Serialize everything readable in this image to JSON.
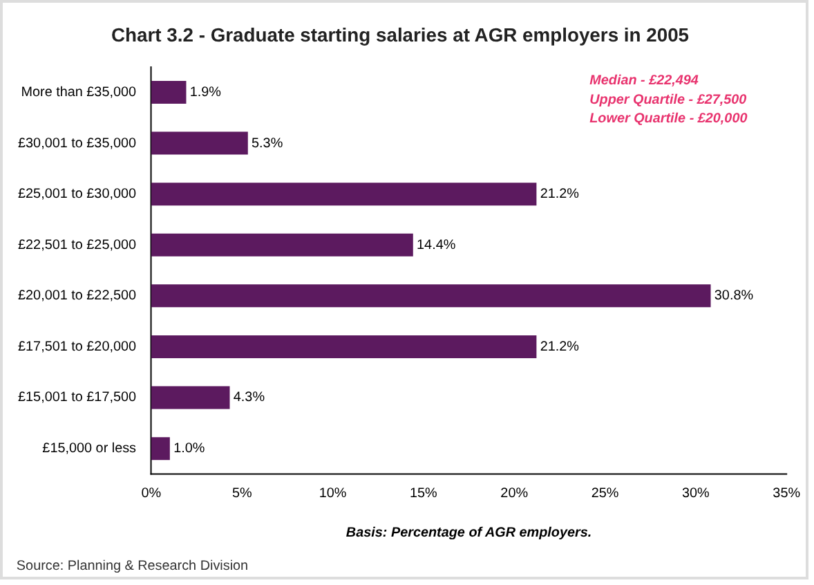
{
  "chart_data": {
    "type": "bar",
    "orientation": "horizontal",
    "title": "Chart 3.2 - Graduate starting salaries at AGR employers in 2005",
    "xlabel": "Basis: Percentage of AGR employers.",
    "categories": [
      "More than £35,000",
      "£30,001 to £35,000",
      "£25,001 to £30,000",
      "£22,501 to £25,000",
      "£20,001 to £22,500",
      "£17,501 to £20,000",
      "£15,001 to £17,500",
      "£15,000 or less"
    ],
    "values": [
      1.9,
      5.3,
      21.2,
      14.4,
      30.8,
      21.2,
      4.3,
      1.0
    ],
    "value_labels": [
      "1.9%",
      "5.3%",
      "21.2%",
      "14.4%",
      "30.8%",
      "21.2%",
      "4.3%",
      "1.0%"
    ],
    "color": "#5c1a5f",
    "xlim": [
      0,
      35
    ],
    "xticks": [
      {
        "value": 0,
        "label": "0%"
      },
      {
        "value": 5,
        "label": "5%"
      },
      {
        "value": 10,
        "label": "10%"
      },
      {
        "value": 15,
        "label": "15%"
      },
      {
        "value": 20,
        "label": "20%"
      },
      {
        "value": 25,
        "label": "25%"
      },
      {
        "value": 30,
        "label": "30%"
      },
      {
        "value": 35,
        "label": "35%"
      }
    ],
    "grid": false,
    "legend": false,
    "annotations": [
      "Median - £22,494",
      "Upper Quartile - £27,500",
      "Lower Quartile - £20,000",
      "Source: Planning & Research Division"
    ]
  }
}
